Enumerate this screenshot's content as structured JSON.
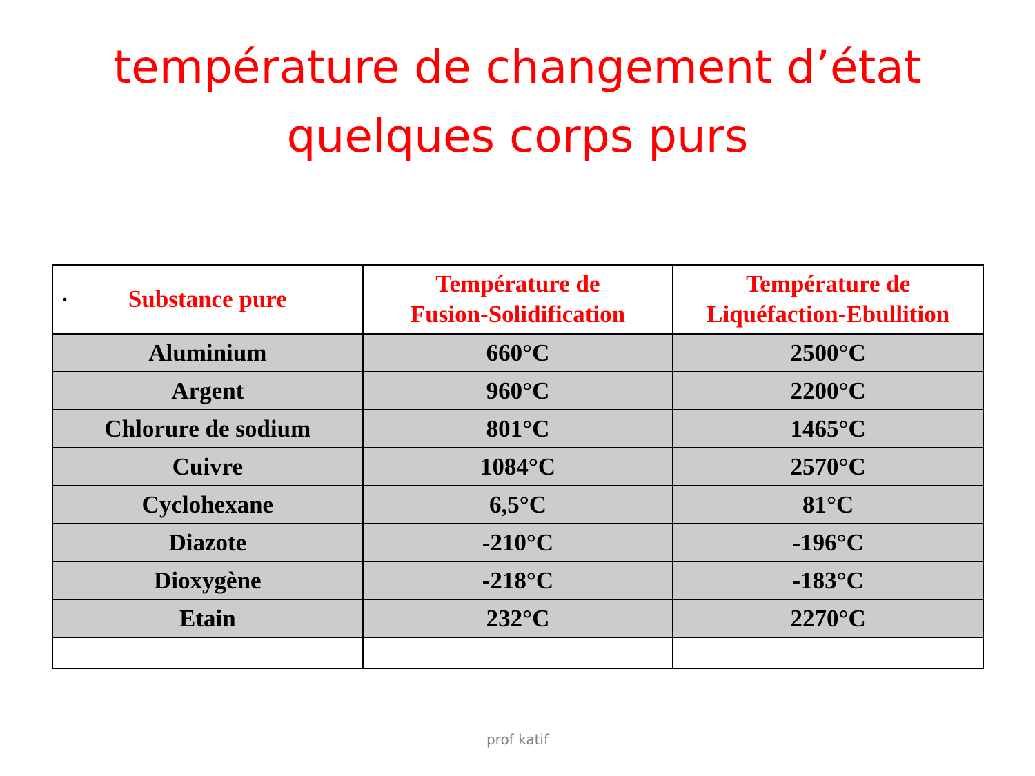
{
  "title": {
    "line1": "température de changement d’état",
    "line2": "quelques corps purs"
  },
  "table": {
    "bullet": "·",
    "headers": [
      {
        "line1": "Substance pure",
        "line2": ""
      },
      {
        "line1": "Température de",
        "line2": "Fusion-Solidification"
      },
      {
        "line1": "Température de",
        "line2": "Liquéfaction-Ebullition"
      }
    ],
    "rows": [
      [
        "Aluminium",
        "660°C",
        "2500°C"
      ],
      [
        "Argent",
        "960°C",
        "2200°C"
      ],
      [
        "Chlorure de sodium",
        "801°C",
        "1465°C"
      ],
      [
        "Cuivre",
        "1084°C",
        "2570°C"
      ],
      [
        "Cyclohexane",
        "6,5°C",
        "81°C"
      ],
      [
        "Diazote",
        "-210°C",
        "-196°C"
      ],
      [
        "Dioxygène",
        "-218°C",
        "-183°C"
      ],
      [
        "Etain",
        "232°C",
        "2270°C"
      ]
    ]
  },
  "footer": "prof  katif"
}
